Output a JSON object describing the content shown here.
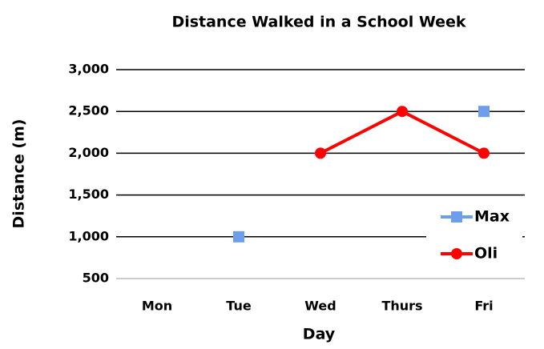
{
  "chart_data": {
    "type": "line",
    "title": "Distance Walked in a School Week",
    "x_label": "Day",
    "y_label": "Distance (m)",
    "categories": [
      "Mon",
      "Tue",
      "Wed",
      "Thurs",
      "Fri"
    ],
    "series": [
      {
        "name": "Max",
        "color": "#6d9eeb",
        "marker": "square",
        "values": [
          null,
          1000,
          null,
          null,
          2500
        ]
      },
      {
        "name": "Oli",
        "color": "#ff0000",
        "marker": "circle",
        "values": [
          null,
          null,
          2000,
          2500,
          2000
        ]
      }
    ],
    "ylim": [
      500,
      3000
    ],
    "yticks": [
      500,
      {
        "value": 1000,
        "label": "1,000"
      },
      {
        "value": 1500,
        "label": "1,500"
      },
      {
        "value": 2000,
        "label": "2,000"
      },
      {
        "value": 2500,
        "label": "2,500"
      },
      {
        "value": 3000,
        "label": "3,000"
      }
    ],
    "grid": true,
    "legend": "right"
  }
}
